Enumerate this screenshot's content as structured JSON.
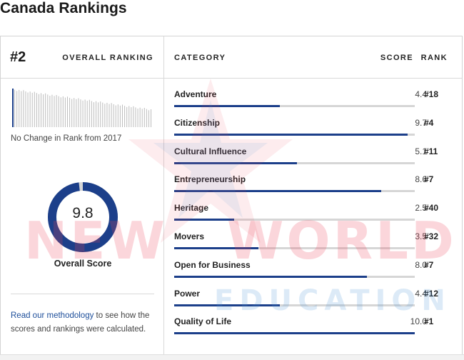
{
  "page": {
    "title": "Canada Rankings"
  },
  "overall": {
    "rank": "#2",
    "rank_label": "OVERALL RANKING",
    "change_text": "No Change in Rank from 2017",
    "score": "9.8",
    "score_fraction": 0.98,
    "score_label": "Overall Score",
    "methodology_link": "Read our methodology",
    "methodology_text": " to see how the scores and rankings were calculated."
  },
  "table": {
    "headers": {
      "category": "CATEGORY",
      "score": "SCORE",
      "rank": "RANK"
    },
    "max_score": 10,
    "rows": [
      {
        "category": "Adventure",
        "score": "4.4",
        "rank": "#18"
      },
      {
        "category": "Citizenship",
        "score": "9.7",
        "rank": "#4"
      },
      {
        "category": "Cultural Influence",
        "score": "5.1",
        "rank": "#11"
      },
      {
        "category": "Entrepreneurship",
        "score": "8.6",
        "rank": "#7"
      },
      {
        "category": "Heritage",
        "score": "2.5",
        "rank": "#40"
      },
      {
        "category": "Movers",
        "score": "3.5",
        "rank": "#32"
      },
      {
        "category": "Open for Business",
        "score": "8.0",
        "rank": "#7"
      },
      {
        "category": "Power",
        "score": "4.4",
        "rank": "#12"
      },
      {
        "category": "Quality of Life",
        "score": "10.0",
        "rank": "#1"
      }
    ]
  },
  "watermark": {
    "line1_left": "NEW",
    "line1_right": "WORLD",
    "line2": "EDUCATION"
  },
  "colors": {
    "accent": "#1c3f8a",
    "bar_track": "#d6d6d6",
    "donut_track": "#d6d6d6",
    "link": "#1d4e9a",
    "spark_bar": "#bdbdbd",
    "spark_current": "#1c3f8a"
  }
}
